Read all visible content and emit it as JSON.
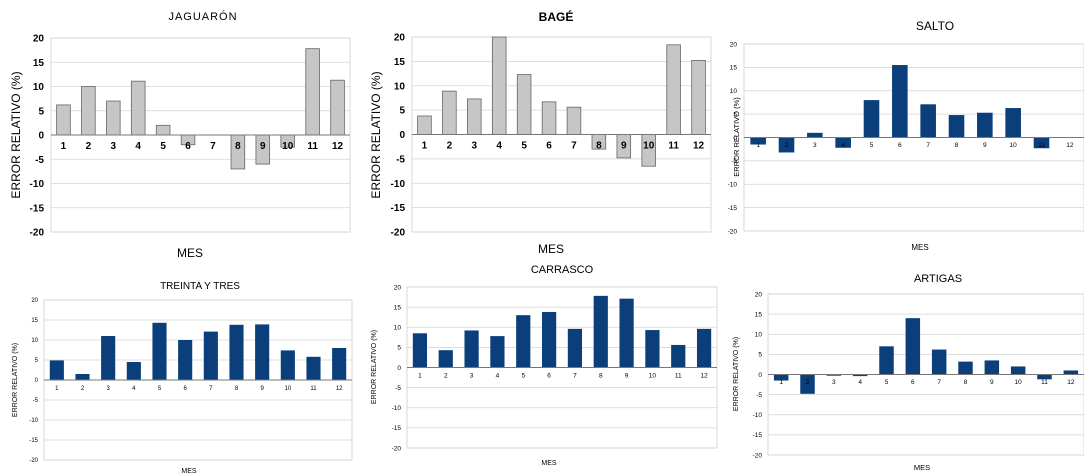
{
  "chart_data": [
    {
      "id": "jaguaron",
      "type": "bar",
      "title": "JAGUARÓN",
      "xlabel": "MES",
      "ylabel": "ERROR RELATIVO (%)",
      "categories": [
        "1",
        "2",
        "3",
        "4",
        "5",
        "6",
        "7",
        "8",
        "9",
        "10",
        "11",
        "12"
      ],
      "values": [
        6.2,
        10,
        7,
        11.1,
        2,
        -2,
        0,
        -7,
        -6,
        -2.5,
        17.8,
        11.3
      ],
      "ylim": [
        -20,
        20
      ],
      "yticks": [
        -20,
        -15,
        -10,
        -5,
        0,
        5,
        10,
        15,
        20
      ],
      "grid": true,
      "bar_color": "#c6c6c6"
    },
    {
      "id": "bage",
      "type": "bar",
      "title": "BAGÉ",
      "xlabel": "MES",
      "ylabel": "ERROR RELATIVO (%)",
      "categories": [
        "1",
        "2",
        "3",
        "4",
        "5",
        "6",
        "7",
        "8",
        "9",
        "10",
        "11",
        "12"
      ],
      "values": [
        3.8,
        8.9,
        7.3,
        20,
        12.3,
        6.7,
        5.6,
        -3,
        -4.8,
        -6.5,
        18.4,
        15.2
      ],
      "ylim": [
        -20,
        20
      ],
      "yticks": [
        -20,
        -15,
        -10,
        -5,
        0,
        5,
        10,
        15,
        20
      ],
      "grid": true,
      "bar_color": "#c6c6c6"
    },
    {
      "id": "salto",
      "type": "bar",
      "title": "SALTO",
      "xlabel": "MES",
      "ylabel": "ERROR RELATIVO (%)",
      "categories": [
        "1",
        "2",
        "3",
        "4",
        "5",
        "6",
        "7",
        "8",
        "9",
        "10",
        "11",
        "12"
      ],
      "values": [
        -1.5,
        -3.2,
        1,
        -2.2,
        8,
        15.5,
        7.1,
        4.8,
        5.3,
        6.3,
        -2.3,
        0
      ],
      "ylim": [
        -20,
        20
      ],
      "yticks": [
        -20,
        -15,
        -10,
        -5,
        0,
        5,
        10,
        15,
        20
      ],
      "grid": true,
      "bar_color": "#0a3f7c"
    },
    {
      "id": "treinta",
      "type": "bar",
      "title": "TREINTA Y TRES",
      "xlabel": "MES",
      "ylabel": "ERROR RELATIVO (%)",
      "categories": [
        "1",
        "2",
        "3",
        "4",
        "5",
        "6",
        "7",
        "8",
        "9",
        "10",
        "11",
        "12"
      ],
      "values": [
        4.9,
        1.5,
        11,
        4.5,
        14.3,
        10,
        12.1,
        13.8,
        13.9,
        7.4,
        5.8,
        8
      ],
      "ylim": [
        -20,
        20
      ],
      "yticks": [
        -20,
        -15,
        -10,
        -5,
        0,
        5,
        10,
        15,
        20
      ],
      "grid": true,
      "bar_color": "#0a3f7c"
    },
    {
      "id": "carrasco",
      "type": "bar",
      "title": "CARRASCO",
      "xlabel": "MES",
      "ylabel": "ERROR RELATIVO (%)",
      "categories": [
        "1",
        "2",
        "3",
        "4",
        "5",
        "6",
        "7",
        "8",
        "9",
        "10",
        "11",
        "12"
      ],
      "values": [
        8.5,
        4.3,
        9.2,
        7.8,
        13,
        13.8,
        9.6,
        17.8,
        17.1,
        9.3,
        5.6,
        9.6
      ],
      "ylim": [
        -20,
        20
      ],
      "yticks": [
        -20,
        -15,
        -10,
        -5,
        0,
        5,
        10,
        15,
        20
      ],
      "grid": true,
      "bar_color": "#0a3f7c"
    },
    {
      "id": "artigas",
      "type": "bar",
      "title": "ARTIGAS",
      "xlabel": "MES",
      "ylabel": "ERROR RELATIVO (%)",
      "categories": [
        "1",
        "2",
        "3",
        "4",
        "5",
        "6",
        "7",
        "8",
        "9",
        "10",
        "11",
        "12"
      ],
      "values": [
        -1.5,
        -4.8,
        -0.3,
        -0.4,
        7,
        14,
        6.2,
        3.2,
        3.5,
        2,
        -1.2,
        1
      ],
      "ylim": [
        -20,
        20
      ],
      "yticks": [
        -20,
        -15,
        -10,
        -5,
        0,
        5,
        10,
        15,
        20
      ],
      "grid": true,
      "bar_color": "#0a3f7c"
    }
  ]
}
